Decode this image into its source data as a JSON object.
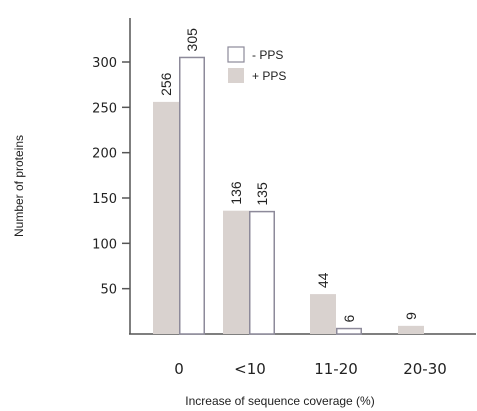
{
  "chart_data": {
    "type": "bar",
    "categories": [
      "0",
      "<10",
      "11-20",
      "20-30"
    ],
    "series": [
      {
        "name": "+ PPS",
        "values": [
          256,
          136,
          44,
          9
        ],
        "color": "#d9d2cf",
        "fill_style": "solid"
      },
      {
        "name": "- PPS",
        "values": [
          305,
          135,
          6,
          null
        ],
        "color": "#ffffff",
        "stroke": "#8d8a9a",
        "fill_style": "outline"
      }
    ],
    "data_labels": [
      [
        "256",
        "136",
        "44",
        "9"
      ],
      [
        "305",
        "135",
        "6",
        ""
      ]
    ],
    "title": "",
    "xlabel": "Increase of sequence coverage (%)",
    "ylabel": "Number of proteins",
    "ylim": [
      0,
      350
    ],
    "yticks": [
      50,
      100,
      150,
      200,
      250,
      300
    ],
    "grid": false,
    "legend": {
      "position": "top-right",
      "order": [
        "- PPS",
        "+ PPS"
      ]
    }
  }
}
